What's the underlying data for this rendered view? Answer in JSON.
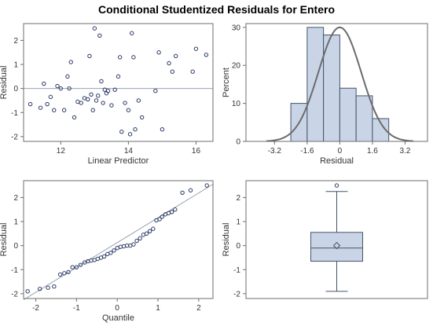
{
  "title": "Conditional Studentized Residuals for Entero",
  "colors": {
    "frame": "#6e6e6e",
    "marker": "#2b3a67",
    "ref_line": "#99a3b4",
    "bar_fill": "#c9d5e7",
    "bar_edge": "#44546a",
    "curve": "#6b6b6b",
    "box_fill": "#c9d5e7"
  },
  "chart_data": [
    {
      "type": "scatter",
      "name": "residual-vs-predictor",
      "xlabel": "Linear Predictor",
      "ylabel": "Residual",
      "xlim": [
        10.9,
        16.5
      ],
      "ylim": [
        -2.2,
        2.7
      ],
      "xticks": [
        12,
        14,
        16
      ],
      "yticks": [
        -2,
        -1,
        0,
        1,
        2
      ],
      "reference_line_y": 0,
      "points": [
        [
          11.1,
          -0.65
        ],
        [
          11.4,
          -0.8
        ],
        [
          11.5,
          0.2
        ],
        [
          11.6,
          -0.65
        ],
        [
          11.7,
          -0.35
        ],
        [
          11.8,
          -0.9
        ],
        [
          11.9,
          0.1
        ],
        [
          12.0,
          0.0
        ],
        [
          12.1,
          -0.9
        ],
        [
          12.2,
          0.5
        ],
        [
          12.25,
          0.0
        ],
        [
          12.3,
          1.1
        ],
        [
          12.4,
          -1.2
        ],
        [
          12.5,
          -0.55
        ],
        [
          12.6,
          -0.6
        ],
        [
          12.7,
          -0.4
        ],
        [
          12.8,
          -0.45
        ],
        [
          12.85,
          1.35
        ],
        [
          12.9,
          -0.25
        ],
        [
          12.95,
          -0.9
        ],
        [
          13.0,
          2.5
        ],
        [
          13.05,
          -0.5
        ],
        [
          13.1,
          -0.3
        ],
        [
          13.15,
          2.2
        ],
        [
          13.2,
          0.3
        ],
        [
          13.25,
          -0.6
        ],
        [
          13.3,
          -0.05
        ],
        [
          13.35,
          -0.2
        ],
        [
          13.4,
          -0.1
        ],
        [
          13.5,
          -0.7
        ],
        [
          13.6,
          -0.05
        ],
        [
          13.7,
          0.5
        ],
        [
          13.75,
          1.3
        ],
        [
          13.8,
          -1.8
        ],
        [
          13.9,
          -0.6
        ],
        [
          14.0,
          -0.9
        ],
        [
          14.05,
          -1.9
        ],
        [
          14.1,
          2.3
        ],
        [
          14.15,
          1.3
        ],
        [
          14.2,
          -1.7
        ],
        [
          14.3,
          -0.5
        ],
        [
          14.4,
          -1.2
        ],
        [
          14.8,
          -0.1
        ],
        [
          14.9,
          1.5
        ],
        [
          15.0,
          -1.7
        ],
        [
          15.2,
          1.05
        ],
        [
          15.3,
          0.7
        ],
        [
          15.4,
          1.35
        ],
        [
          15.9,
          0.7
        ],
        [
          16.0,
          1.65
        ],
        [
          16.3,
          1.4
        ]
      ]
    },
    {
      "type": "bar",
      "name": "residual-histogram",
      "xlabel": "Residual",
      "ylabel": "Percent",
      "xlim": [
        -4.6,
        4.3
      ],
      "ylim": [
        0,
        31
      ],
      "xticks": [
        -3.2,
        -1.6,
        0,
        1.6,
        3.2
      ],
      "yticks": [
        0,
        10,
        20,
        30
      ],
      "bins": [
        {
          "from": -2.4,
          "to": -1.6,
          "value": 10
        },
        {
          "from": -1.6,
          "to": -0.8,
          "value": 30
        },
        {
          "from": -0.8,
          "to": 0.0,
          "value": 28
        },
        {
          "from": 0.0,
          "to": 0.8,
          "value": 14
        },
        {
          "from": 0.8,
          "to": 1.6,
          "value": 12
        },
        {
          "from": 1.6,
          "to": 2.4,
          "value": 6
        }
      ],
      "normal_curve": {
        "mean": 0.0,
        "sd": 1.05,
        "peak": 30
      }
    },
    {
      "type": "scatter",
      "name": "qq-plot",
      "xlabel": "Quantile",
      "ylabel": "Residual",
      "xlim": [
        -2.3,
        2.35
      ],
      "ylim": [
        -2.2,
        2.7
      ],
      "xticks": [
        -2,
        -1,
        0,
        1,
        2
      ],
      "yticks": [
        -2,
        -1,
        0,
        1,
        2
      ],
      "reference_line": [
        [
          -2.3,
          -2.25
        ],
        [
          2.35,
          2.55
        ]
      ],
      "points": [
        [
          -2.2,
          -1.9
        ],
        [
          -1.9,
          -1.8
        ],
        [
          -1.7,
          -1.75
        ],
        [
          -1.55,
          -1.7
        ],
        [
          -1.4,
          -1.2
        ],
        [
          -1.3,
          -1.15
        ],
        [
          -1.2,
          -1.1
        ],
        [
          -1.1,
          -0.9
        ],
        [
          -1.0,
          -0.9
        ],
        [
          -0.9,
          -0.8
        ],
        [
          -0.8,
          -0.7
        ],
        [
          -0.72,
          -0.65
        ],
        [
          -0.64,
          -0.62
        ],
        [
          -0.56,
          -0.6
        ],
        [
          -0.48,
          -0.55
        ],
        [
          -0.4,
          -0.5
        ],
        [
          -0.32,
          -0.45
        ],
        [
          -0.24,
          -0.35
        ],
        [
          -0.16,
          -0.3
        ],
        [
          -0.08,
          -0.2
        ],
        [
          0.0,
          -0.1
        ],
        [
          0.08,
          -0.05
        ],
        [
          0.16,
          -0.03
        ],
        [
          0.24,
          0.0
        ],
        [
          0.32,
          0.0
        ],
        [
          0.4,
          0.05
        ],
        [
          0.48,
          0.2
        ],
        [
          0.56,
          0.3
        ],
        [
          0.64,
          0.45
        ],
        [
          0.72,
          0.5
        ],
        [
          0.8,
          0.6
        ],
        [
          0.88,
          0.7
        ],
        [
          0.96,
          1.05
        ],
        [
          1.04,
          1.1
        ],
        [
          1.1,
          1.2
        ],
        [
          1.18,
          1.3
        ],
        [
          1.26,
          1.35
        ],
        [
          1.34,
          1.4
        ],
        [
          1.42,
          1.5
        ],
        [
          1.6,
          2.2
        ],
        [
          1.8,
          2.3
        ],
        [
          2.2,
          2.5
        ]
      ]
    },
    {
      "type": "box",
      "name": "residual-boxplot",
      "ylabel": "Residual",
      "ylim": [
        -2.2,
        2.7
      ],
      "yticks": [
        -2,
        -1,
        0,
        1,
        2
      ],
      "whisker_low": -1.9,
      "q1": -0.65,
      "median": -0.1,
      "mean": 0.0,
      "q3": 0.55,
      "whisker_high": 2.25,
      "outliers": [
        2.5
      ]
    }
  ]
}
